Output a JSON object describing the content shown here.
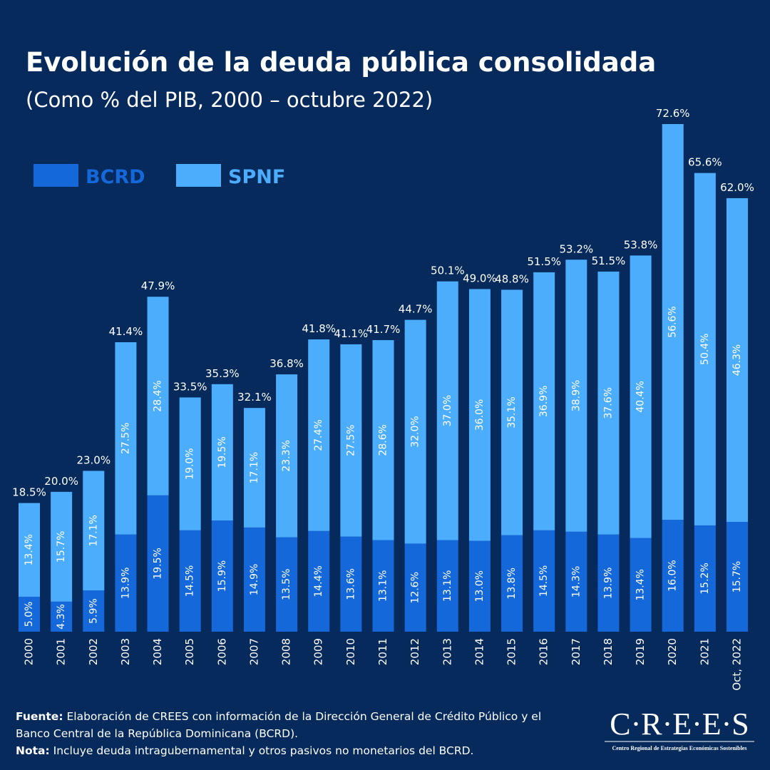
{
  "chart_data": {
    "type": "stacked_bar",
    "title": "Evolución de la deuda pública consolidada",
    "subtitle": "(Como % del PIB, 2000 – octubre 2022)",
    "categories": [
      "2000",
      "2001",
      "2002",
      "2003",
      "2004",
      "2005",
      "2006",
      "2007",
      "2008",
      "2009",
      "2010",
      "2011",
      "2012",
      "2013",
      "2014",
      "2015",
      "2016",
      "2017",
      "2018",
      "2019",
      "2020",
      "2021",
      "Oct, 2022"
    ],
    "series": [
      {
        "name": "BCRD",
        "color": "#1468da",
        "values": [
          5.0,
          4.3,
          5.9,
          13.9,
          19.5,
          14.5,
          15.9,
          14.9,
          13.5,
          14.4,
          13.6,
          13.1,
          12.6,
          13.1,
          13.0,
          13.8,
          14.5,
          14.3,
          13.9,
          13.4,
          16.0,
          15.2,
          15.7
        ],
        "value_labels": [
          "5.0%",
          "4.3%",
          "5.9%",
          "13.9%",
          "19.5%",
          "14.5%",
          "15.9%",
          "14.9%",
          "13.5%",
          "14.4%",
          "13.6%",
          "13.1%",
          "12.6%",
          "13.1%",
          "13.0%",
          "13.8%",
          "14.5%",
          "14.3%",
          "13.9%",
          "13.4%",
          "16.0%",
          "15.2%",
          "15.7%"
        ]
      },
      {
        "name": "SPNF",
        "color": "#4dadfd",
        "values": [
          13.4,
          15.7,
          17.1,
          27.5,
          28.4,
          19.0,
          19.5,
          17.1,
          23.3,
          27.4,
          27.5,
          28.6,
          32.0,
          37.0,
          36.0,
          35.1,
          36.9,
          38.9,
          37.6,
          40.4,
          56.6,
          50.4,
          46.3
        ],
        "value_labels": [
          "13.4%",
          "15.7%",
          "17.1%",
          "27.5%",
          "28.4%",
          "19.0%",
          "19.5%",
          "17.1%",
          "23.3%",
          "27.4%",
          "27.5%",
          "28.6%",
          "32.0%",
          "37.0%",
          "36.0%",
          "35.1%",
          "36.9%",
          "38.9%",
          "37.6%",
          "40.4%",
          "56.6%",
          "50.4%",
          "46.3%"
        ]
      }
    ],
    "totals": {
      "values": [
        18.5,
        20.0,
        23.0,
        41.4,
        47.9,
        33.5,
        35.3,
        32.1,
        36.8,
        41.8,
        41.1,
        41.7,
        44.7,
        50.1,
        49.0,
        48.8,
        51.5,
        53.2,
        51.5,
        53.8,
        72.6,
        65.6,
        62.0
      ],
      "value_labels": [
        "18.5%",
        "20.0%",
        "23.0%",
        "41.4%",
        "47.9%",
        "33.5%",
        "35.3%",
        "32.1%",
        "36.8%",
        "41.8%",
        "41.1%",
        "41.7%",
        "44.7%",
        "50.1%",
        "49.0%",
        "48.8%",
        "51.5%",
        "53.2%",
        "51.5%",
        "53.8%",
        "72.6%",
        "65.6%",
        "62.0%"
      ]
    },
    "legend": "top-left"
  },
  "footer": {
    "source_label": "Fuente:",
    "source_lines": [
      "Elaboración de CREES con información de la Dirección General de Crédito Público y el",
      "Banco Central de la República Dominicana (BCRD)."
    ],
    "note_label": "Nota:",
    "note": "Incluye deuda intragubernamental y otros pasivos no monetarios del BCRD."
  },
  "logo": {
    "name": "C·R·E·E·S",
    "tagline": "Centro Regional de Estrategias Económicas Sostenibles"
  }
}
